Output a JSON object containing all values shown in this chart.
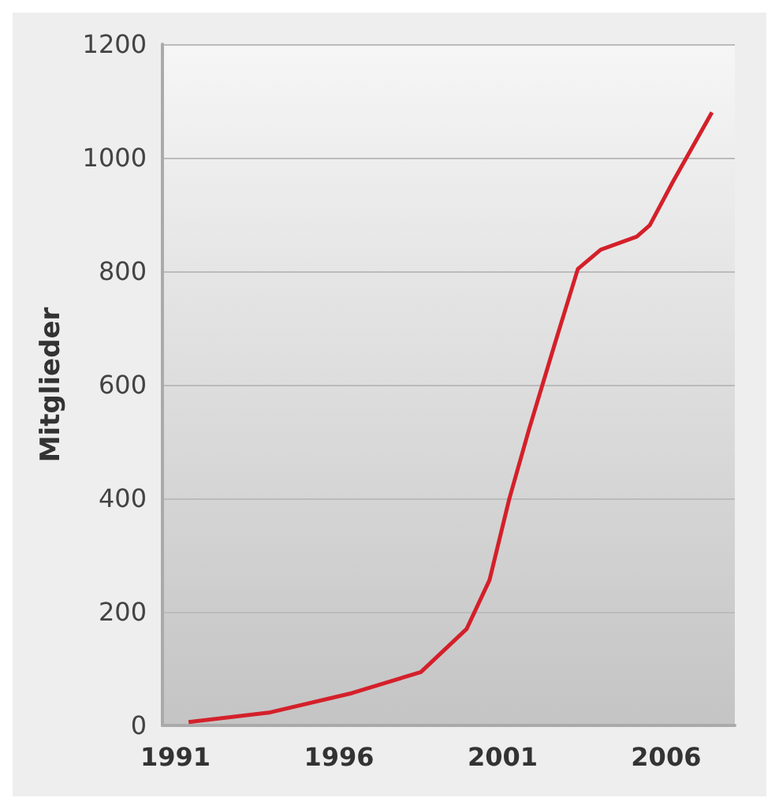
{
  "chart_data": {
    "type": "line",
    "ylabel": "Mitglieder",
    "x": [
      1991.4,
      1993.9,
      1996.4,
      1998.5,
      1999.9,
      2000.6,
      2001.2,
      2001.8,
      2002.6,
      2003.3,
      2004.0,
      2005.1,
      2005.5,
      2006.2,
      2007.4
    ],
    "values": [
      6,
      23,
      57,
      94,
      170,
      256,
      398,
      520,
      673,
      804,
      838,
      861,
      881,
      957,
      1080
    ],
    "color": "#d4202a",
    "xlim": [
      1990.6,
      2008.1
    ],
    "xticks": [
      1991,
      1996,
      2001,
      2006
    ],
    "ylim": [
      0,
      1200
    ],
    "yticks": [
      0,
      200,
      400,
      600,
      800,
      1000,
      1200
    ],
    "grid": "y"
  }
}
